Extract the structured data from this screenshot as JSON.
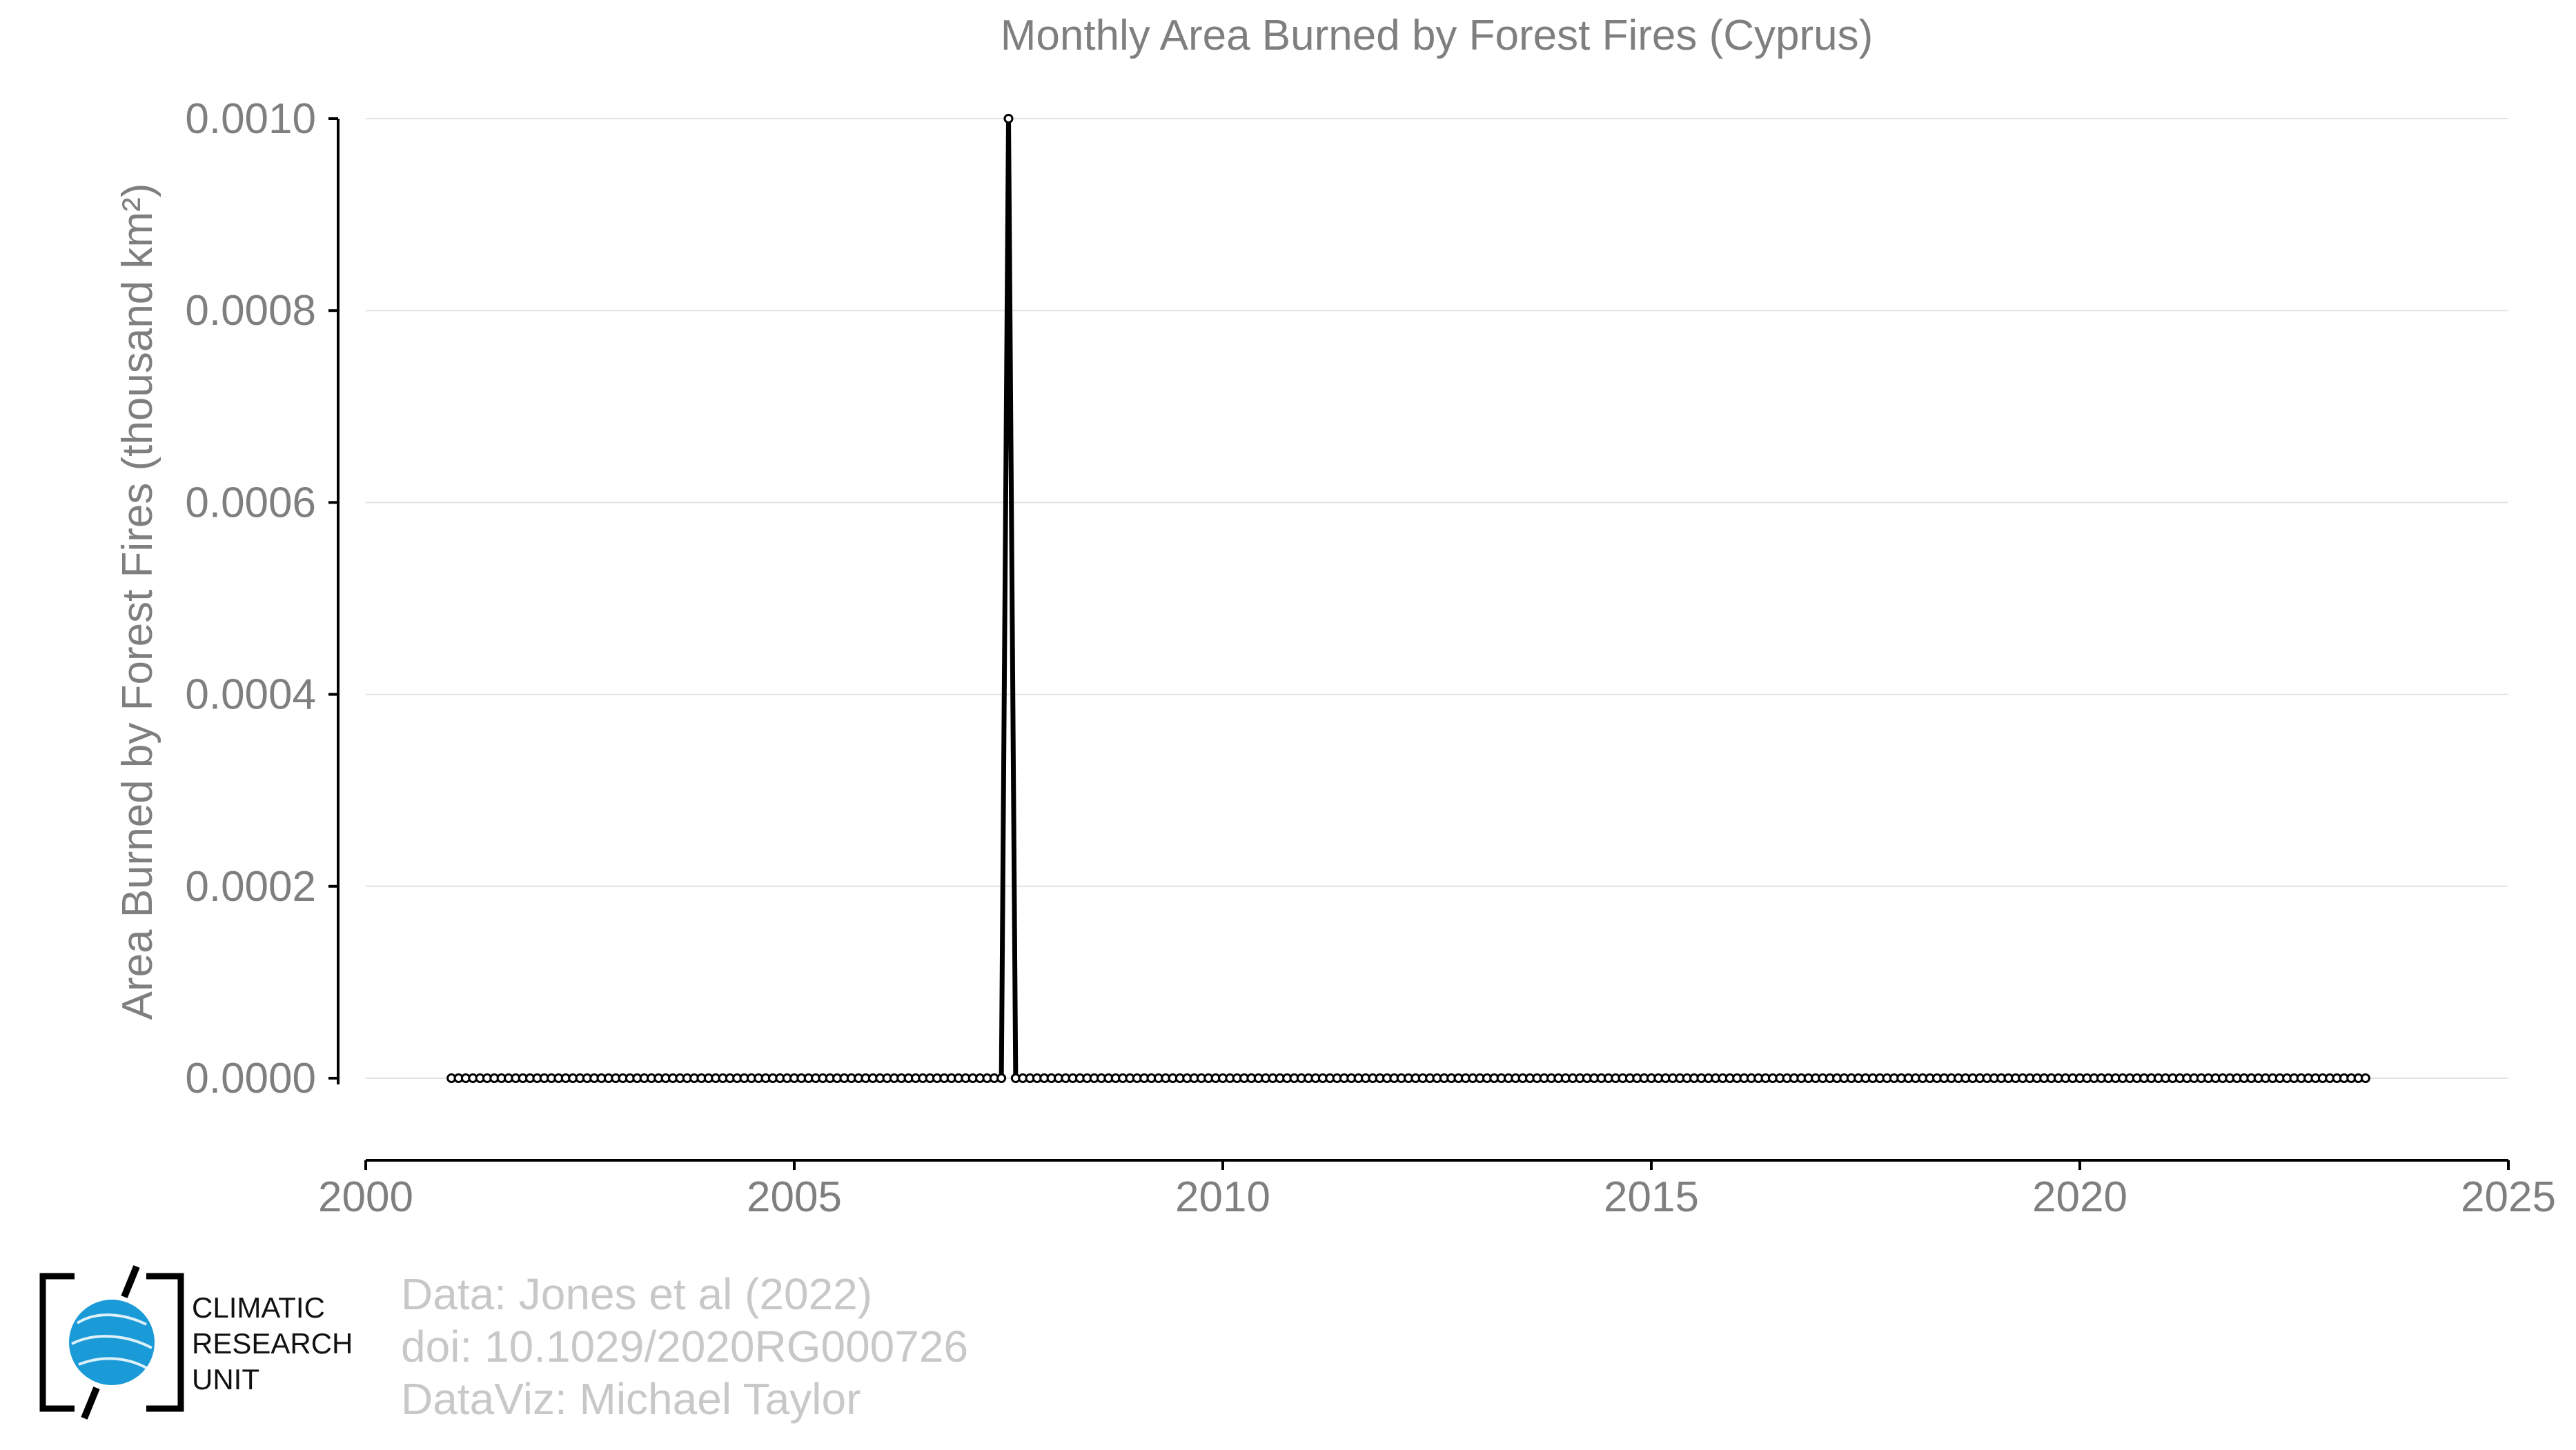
{
  "chart_data": {
    "type": "line",
    "title": "Monthly Area Burned by Forest Fires (Cyprus)",
    "ylabel": "Area Burned by Forest Fires (thousand km²)",
    "xlabel": "",
    "xlim": [
      2000,
      2025
    ],
    "ylim": [
      0,
      0.001
    ],
    "x_ticks": [
      "2000",
      "2005",
      "2010",
      "2015",
      "2020",
      "2025"
    ],
    "y_ticks": [
      "0.0000",
      "0.0002",
      "0.0004",
      "0.0006",
      "0.0008",
      "0.0010"
    ],
    "grid": "horizontal",
    "series": [
      {
        "start": "2001-01",
        "end": "2023-05",
        "frequency": "monthly",
        "baseline_value": 0,
        "peaks": [
          {
            "date": "2007-07",
            "value": 0.001
          }
        ]
      }
    ]
  },
  "credits": {
    "line1": "Data: Jones et al (2022)",
    "line2": "doi: 10.1029/2020RG000726",
    "line3": "DataViz: Michael Taylor"
  },
  "logo": {
    "line1": "CLIMATIC",
    "line2": "RESEARCH",
    "line3": "UNIT"
  },
  "colors": {
    "line": "#000000",
    "marker_fill": "#ffffff",
    "grid": "#e3e3e3",
    "text": "#7f7f7f",
    "credits": "#c8c8c8",
    "globe": "#1a9ad7"
  }
}
